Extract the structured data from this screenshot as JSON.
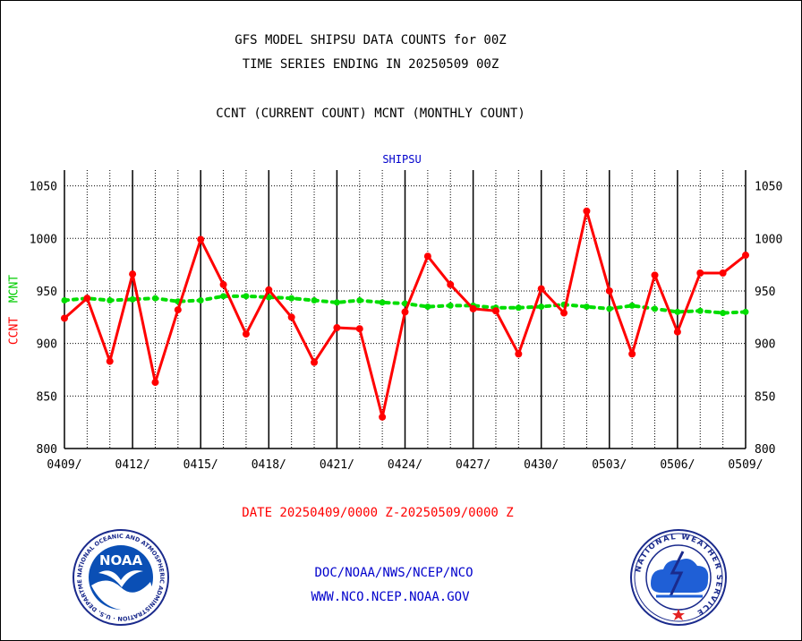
{
  "header": {
    "title_line1": "GFS MODEL SHIPSU DATA COUNTS for 00Z",
    "title_line2": "TIME SERIES ENDING IN 20250509 00Z",
    "subtitle": "CCNT (CURRENT COUNT) MCNT (MONTHLY COUNT)"
  },
  "footer": {
    "date_range": "DATE 20250409/0000 Z-20250509/0000 Z",
    "org": "DOC/NOAA/NWS/NCEP/NCO",
    "url": "WWW.NCO.NCEP.NOAA.GOV"
  },
  "logos": {
    "noaa": "NOAA",
    "noaa_ring": "NATIONAL OCEANIC AND ATMOSPHERIC ADMINISTRATION · U.S. DEPARTMENT OF COMMERCE",
    "nws_ring": "NATIONAL WEATHER SERVICE"
  },
  "colors": {
    "ccnt": "#ff0000",
    "mcnt": "#00dd00",
    "panel_title": "#0000cc"
  },
  "chart_data": {
    "type": "line",
    "title": "SHIPSU",
    "ylabel_ccnt": "CCNT",
    "ylabel_mcnt": "MCNT",
    "xlim": [
      0,
      30
    ],
    "ylim": [
      800,
      1065
    ],
    "y_ticks": [
      800,
      850,
      900,
      950,
      1000,
      1050
    ],
    "x_ticks": [
      {
        "x": 0,
        "label": "0409/"
      },
      {
        "x": 3,
        "label": "0412/"
      },
      {
        "x": 6,
        "label": "0415/"
      },
      {
        "x": 9,
        "label": "0418/"
      },
      {
        "x": 12,
        "label": "0421/"
      },
      {
        "x": 15,
        "label": "0424/"
      },
      {
        "x": 18,
        "label": "0427/"
      },
      {
        "x": 21,
        "label": "0430/"
      },
      {
        "x": 24,
        "label": "0503/"
      },
      {
        "x": 27,
        "label": "0506/"
      },
      {
        "x": 30,
        "label": "0509/"
      }
    ],
    "grid": true,
    "series": [
      {
        "name": "CCNT",
        "x": [
          0,
          1,
          2,
          3,
          4,
          5,
          6,
          7,
          8,
          9,
          10,
          11,
          12,
          13,
          14,
          15,
          16,
          17,
          18,
          19,
          20,
          21,
          22,
          23,
          24,
          25,
          26,
          27,
          28,
          29,
          30
        ],
        "values": [
          924,
          943,
          883,
          966,
          863,
          932,
          999,
          956,
          909,
          951,
          925,
          882,
          915,
          914,
          830,
          930,
          983,
          956,
          933,
          931,
          890,
          952,
          929,
          1026,
          950,
          890,
          965,
          911,
          967,
          967,
          984
        ]
      },
      {
        "name": "MCNT",
        "x": [
          0,
          1,
          2,
          3,
          4,
          5,
          6,
          7,
          8,
          9,
          10,
          11,
          12,
          13,
          14,
          15,
          16,
          17,
          18,
          19,
          20,
          21,
          22,
          23,
          24,
          25,
          26,
          27,
          28,
          29,
          30
        ],
        "values": [
          941,
          943,
          941,
          942,
          943,
          940,
          941,
          945,
          945,
          944,
          943,
          941,
          939,
          941,
          939,
          938,
          935,
          936,
          936,
          934,
          934,
          935,
          937,
          935,
          933,
          936,
          933,
          930,
          931,
          929,
          930
        ]
      }
    ]
  }
}
